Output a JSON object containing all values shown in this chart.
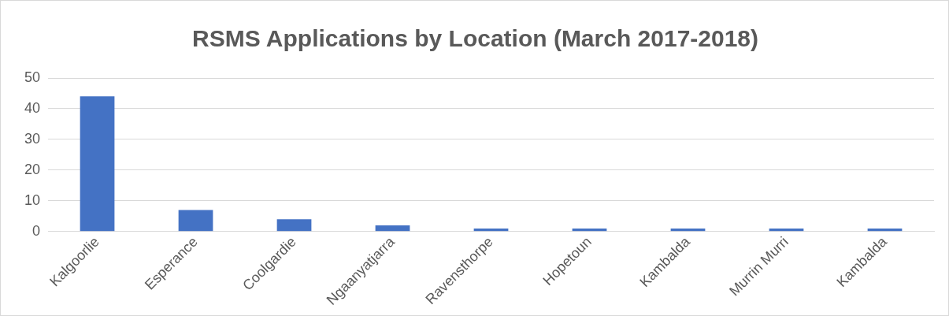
{
  "chart_data": {
    "type": "bar",
    "title": "RSMS Applications by Location (March 2017-2018)",
    "categories": [
      "Kalgoorlie",
      "Esperance",
      "Coolgardie",
      "Ngaanyatjarra",
      "Ravensthorpe",
      "Hopetoun",
      "Kambalda",
      "Murrin Murri",
      "Kambalda"
    ],
    "values": [
      44,
      7,
      4,
      2,
      1,
      1,
      1,
      1,
      1
    ],
    "color": "#4472c4",
    "ylim": [
      0,
      50
    ],
    "yticks": [
      0,
      10,
      20,
      30,
      40,
      50
    ],
    "grid": "y",
    "legend": false
  }
}
